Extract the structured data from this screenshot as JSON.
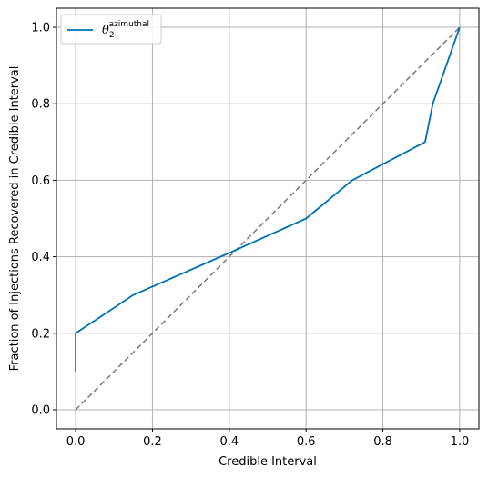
{
  "chart_data": {
    "type": "line",
    "xlabel": "Credible Interval",
    "ylabel": "Fraction of Injections Recovered in Credible Interval",
    "xlim": [
      -0.05,
      1.05
    ],
    "ylim": [
      -0.05,
      1.05
    ],
    "xticks": [
      "0.0",
      "0.2",
      "0.4",
      "0.6",
      "0.8",
      "1.0"
    ],
    "yticks": [
      "0.0",
      "0.2",
      "0.4",
      "0.6",
      "0.8",
      "1.0"
    ],
    "grid": true,
    "legend": {
      "placement": "top-left",
      "symbol": "θ",
      "subscript": "2",
      "superscript": "azimuthal"
    },
    "series": [
      {
        "name": "θ2 azimuthal",
        "color": "#0072b2",
        "style": "solid",
        "x": [
          0.0,
          0.0,
          0.15,
          0.4,
          0.6,
          0.72,
          0.91,
          0.93,
          1.0
        ],
        "y": [
          0.1,
          0.2,
          0.3,
          0.41,
          0.5,
          0.6,
          0.7,
          0.8,
          1.0
        ]
      },
      {
        "name": "",
        "color": "#7f7f7f",
        "style": "dashed",
        "x": [
          0.0,
          1.0
        ],
        "y": [
          0.0,
          1.0
        ]
      }
    ]
  }
}
